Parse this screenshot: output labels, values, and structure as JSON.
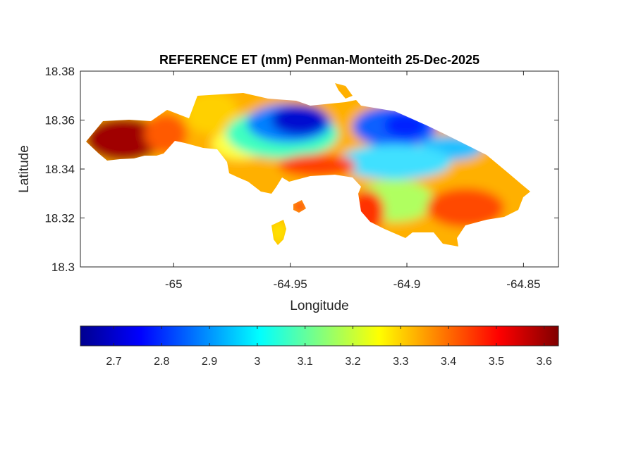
{
  "chart_data": {
    "type": "heatmap",
    "title": "REFERENCE ET (mm) Penman-Monteith 25-Dec-2025",
    "xlabel": "Longitude",
    "ylabel": "Latitude",
    "xlim": [
      -65.04,
      -64.835
    ],
    "ylim": [
      18.3,
      18.38
    ],
    "x_ticks": [
      -65,
      -64.95,
      -64.9,
      -64.85
    ],
    "x_tick_labels": [
      "-65",
      "-64.95",
      "-64.9",
      "-64.85"
    ],
    "y_ticks": [
      18.3,
      18.32,
      18.34,
      18.36,
      18.38
    ],
    "y_tick_labels": [
      "18.3",
      "18.32",
      "18.34",
      "18.36",
      "18.38"
    ],
    "colorbar": {
      "orientation": "horizontal",
      "colormap": "jet",
      "range": [
        2.63,
        3.63
      ],
      "ticks": [
        2.7,
        2.8,
        2.9,
        3,
        3.1,
        3.2,
        3.3,
        3.4,
        3.5,
        3.6
      ],
      "tick_labels": [
        "2.7",
        "2.8",
        "2.9",
        "3",
        "3.1",
        "3.2",
        "3.3",
        "3.4",
        "3.5",
        "3.6"
      ]
    },
    "colors": {
      "jet": [
        "#00008f",
        "#0000ff",
        "#0080ff",
        "#00ffff",
        "#80ff80",
        "#ffff00",
        "#ff8000",
        "#ff0000",
        "#800000"
      ]
    }
  }
}
